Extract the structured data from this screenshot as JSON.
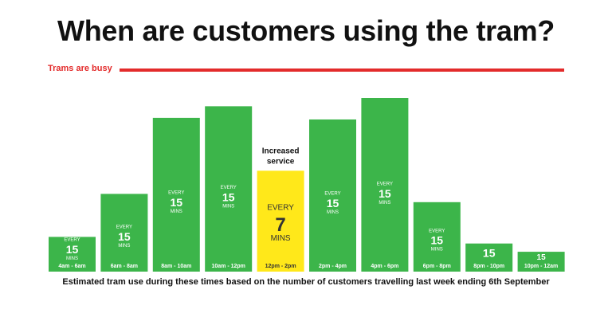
{
  "title": "When are customers using the tram?",
  "busy_label": "Trams are busy",
  "caption": "Estimated tram use during these times based on the number of customers travelling last week ending 6th September",
  "colors": {
    "bar": "#3cb54a",
    "highlight": "#ffe81a",
    "busy": "#e32b2b",
    "text_on_bar": "#ffffff",
    "text_on_highlight": "#333333"
  },
  "chart_data": {
    "type": "bar",
    "categories": [
      "4am - 6am",
      "6am - 8am",
      "8am - 10am",
      "10am - 12pm",
      "12pm - 2pm",
      "2pm - 4pm",
      "4pm - 6pm",
      "6pm - 8pm",
      "8pm - 10pm",
      "10pm - 12am"
    ],
    "values": [
      21,
      47,
      93,
      100,
      61,
      92,
      105,
      42,
      17,
      12
    ],
    "ylim": [
      0,
      105
    ],
    "frequency_labels": [
      {
        "top": "EVERY",
        "number": "15",
        "bottom": "MINS"
      },
      {
        "top": "EVERY",
        "number": "15",
        "bottom": "MINS"
      },
      {
        "top": "EVERY",
        "number": "15",
        "bottom": "MINS"
      },
      {
        "top": "EVERY",
        "number": "15",
        "bottom": "MINS"
      },
      {
        "top": "EVERY",
        "number": "7",
        "bottom": "MINS"
      },
      {
        "top": "EVERY",
        "number": "15",
        "bottom": "MINS"
      },
      {
        "top": "EVERY",
        "number": "15",
        "bottom": "MINS"
      },
      {
        "top": "EVERY",
        "number": "15",
        "bottom": "MINS"
      },
      {
        "top": "",
        "number": "15",
        "bottom": ""
      },
      {
        "top": "",
        "number": "15",
        "bottom": ""
      }
    ],
    "highlight_index": 4,
    "annotation": [
      "Increased",
      "service"
    ],
    "grid": false,
    "legend": "none"
  }
}
